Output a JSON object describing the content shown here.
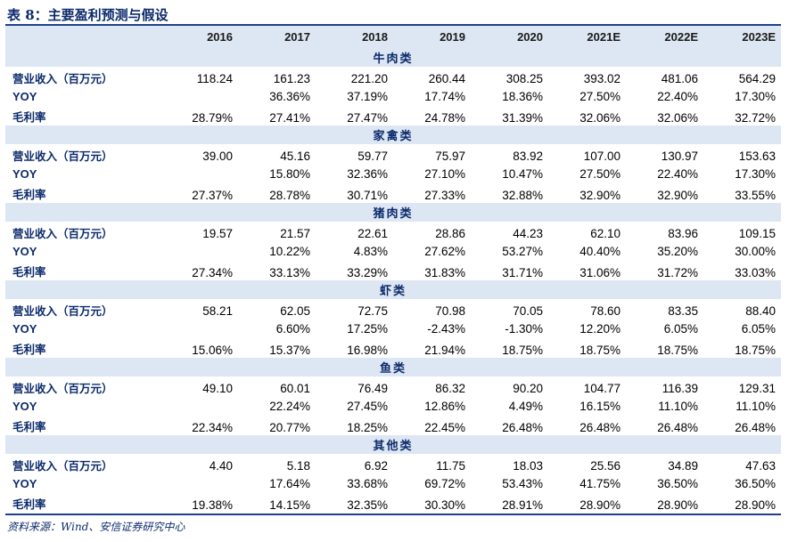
{
  "title": "表 8：主要盈利预测与假设",
  "years": [
    "2016",
    "2017",
    "2018",
    "2019",
    "2020",
    "2021E",
    "2022E",
    "2023E"
  ],
  "sections": [
    {
      "name": "牛肉类",
      "rows": [
        {
          "label": "营业收入（百万元）",
          "values": [
            "118.24",
            "161.23",
            "221.20",
            "260.44",
            "308.25",
            "393.02",
            "481.06",
            "564.29"
          ]
        },
        {
          "label": "YOY",
          "values": [
            "",
            "36.36%",
            "37.19%",
            "17.74%",
            "18.36%",
            "27.50%",
            "22.40%",
            "17.30%"
          ]
        },
        {
          "label": "毛利率",
          "values": [
            "28.79%",
            "27.41%",
            "27.47%",
            "24.78%",
            "31.39%",
            "32.06%",
            "32.06%",
            "32.72%"
          ]
        }
      ]
    },
    {
      "name": "家禽类",
      "rows": [
        {
          "label": "营业收入（百万元）",
          "values": [
            "39.00",
            "45.16",
            "59.77",
            "75.97",
            "83.92",
            "107.00",
            "130.97",
            "153.63"
          ]
        },
        {
          "label": "YOY",
          "values": [
            "",
            "15.80%",
            "32.36%",
            "27.10%",
            "10.47%",
            "27.50%",
            "22.40%",
            "17.30%"
          ]
        },
        {
          "label": "毛利率",
          "values": [
            "27.37%",
            "28.78%",
            "30.71%",
            "27.33%",
            "32.88%",
            "32.90%",
            "32.90%",
            "33.55%"
          ]
        }
      ]
    },
    {
      "name": "猪肉类",
      "rows": [
        {
          "label": "营业收入（百万元）",
          "values": [
            "19.57",
            "21.57",
            "22.61",
            "28.86",
            "44.23",
            "62.10",
            "83.96",
            "109.15"
          ]
        },
        {
          "label": "YOY",
          "values": [
            "",
            "10.22%",
            "4.83%",
            "27.62%",
            "53.27%",
            "40.40%",
            "35.20%",
            "30.00%"
          ]
        },
        {
          "label": "毛利率",
          "values": [
            "27.34%",
            "33.13%",
            "33.29%",
            "31.83%",
            "31.71%",
            "31.06%",
            "31.72%",
            "33.03%"
          ]
        }
      ]
    },
    {
      "name": "虾类",
      "rows": [
        {
          "label": "营业收入（百万元）",
          "values": [
            "58.21",
            "62.05",
            "72.75",
            "70.98",
            "70.05",
            "78.60",
            "83.35",
            "88.40"
          ]
        },
        {
          "label": "YOY",
          "values": [
            "",
            "6.60%",
            "17.25%",
            "-2.43%",
            "-1.30%",
            "12.20%",
            "6.05%",
            "6.05%"
          ]
        },
        {
          "label": "毛利率",
          "values": [
            "15.06%",
            "15.37%",
            "16.98%",
            "21.94%",
            "18.75%",
            "18.75%",
            "18.75%",
            "18.75%"
          ]
        }
      ]
    },
    {
      "name": "鱼类",
      "rows": [
        {
          "label": "营业收入（百万元）",
          "values": [
            "49.10",
            "60.01",
            "76.49",
            "86.32",
            "90.20",
            "104.77",
            "116.39",
            "129.31"
          ]
        },
        {
          "label": "YOY",
          "values": [
            "",
            "22.24%",
            "27.45%",
            "12.86%",
            "4.49%",
            "16.15%",
            "11.10%",
            "11.10%"
          ]
        },
        {
          "label": "毛利率",
          "values": [
            "22.34%",
            "20.77%",
            "18.25%",
            "22.45%",
            "26.48%",
            "26.48%",
            "26.48%",
            "26.48%"
          ]
        }
      ]
    },
    {
      "name": "其他类",
      "rows": [
        {
          "label": "营业收入（百万元）",
          "values": [
            "4.40",
            "5.18",
            "6.92",
            "11.75",
            "18.03",
            "25.56",
            "34.89",
            "47.63"
          ]
        },
        {
          "label": "YOY",
          "values": [
            "",
            "17.64%",
            "33.68%",
            "69.72%",
            "53.43%",
            "41.75%",
            "36.50%",
            "36.50%"
          ]
        },
        {
          "label": "毛利率",
          "values": [
            "19.38%",
            "14.15%",
            "32.35%",
            "30.30%",
            "28.91%",
            "28.90%",
            "28.90%",
            "28.90%"
          ]
        }
      ]
    }
  ],
  "source": "资料来源：Wind、安信证券研究中心"
}
